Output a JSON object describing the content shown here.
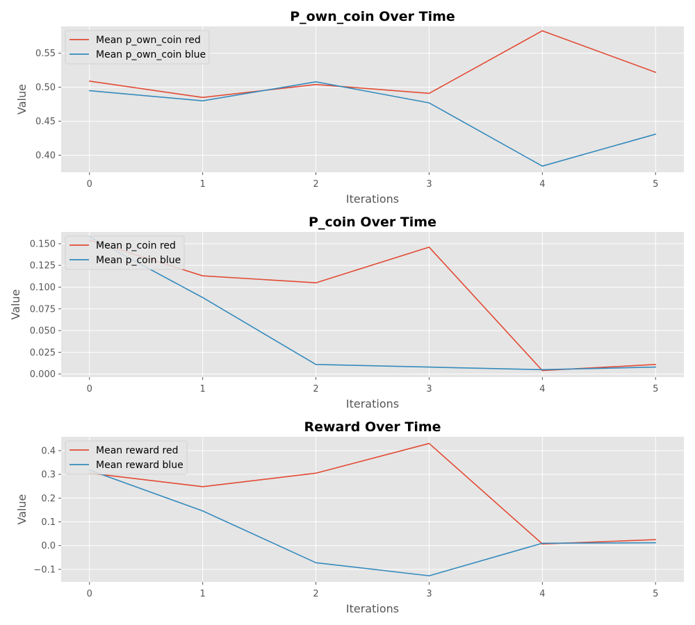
{
  "chart_data": [
    {
      "type": "line",
      "title": "P_own_coin Over Time",
      "xlabel": "Iterations",
      "ylabel": "Value",
      "x": [
        0,
        1,
        2,
        3,
        4,
        5
      ],
      "xlim": [
        -0.25,
        5.25
      ],
      "ylim": [
        0.375,
        0.5895
      ],
      "yticks": [
        0.4,
        0.45,
        0.5,
        0.55
      ],
      "ytick_labels": [
        "0.40",
        "0.45",
        "0.50",
        "0.55"
      ],
      "xticks": [
        0,
        1,
        2,
        3,
        4,
        5
      ],
      "xtick_labels": [
        "0",
        "1",
        "2",
        "3",
        "4",
        "5"
      ],
      "grid": true,
      "legend_position": "top-left",
      "series": [
        {
          "name": "Mean p_own_coin red",
          "color": "#E24A33",
          "values": [
            0.509,
            0.485,
            0.504,
            0.491,
            0.583,
            0.522
          ]
        },
        {
          "name": "Mean p_own_coin blue",
          "color": "#348ABD",
          "values": [
            0.495,
            0.48,
            0.508,
            0.477,
            0.384,
            0.431
          ]
        }
      ]
    },
    {
      "type": "line",
      "title": "P_coin Over Time",
      "xlabel": "Iterations",
      "ylabel": "Value",
      "x": [
        0,
        1,
        2,
        3,
        4,
        5
      ],
      "xlim": [
        -0.25,
        5.25
      ],
      "ylim": [
        -0.0035,
        0.1635
      ],
      "yticks": [
        0.0,
        0.025,
        0.05,
        0.075,
        0.1,
        0.125,
        0.15
      ],
      "ytick_labels": [
        "0.000",
        "0.025",
        "0.050",
        "0.075",
        "0.100",
        "0.125",
        "0.150"
      ],
      "xticks": [
        0,
        1,
        2,
        3,
        4,
        5
      ],
      "xtick_labels": [
        "0",
        "1",
        "2",
        "3",
        "4",
        "5"
      ],
      "grid": true,
      "legend_position": "top-left",
      "series": [
        {
          "name": "Mean p_coin red",
          "color": "#E24A33",
          "values": [
            0.154,
            0.113,
            0.105,
            0.146,
            0.004,
            0.011
          ]
        },
        {
          "name": "Mean p_coin blue",
          "color": "#348ABD",
          "values": [
            0.158,
            0.088,
            0.011,
            0.008,
            0.005,
            0.008
          ]
        }
      ]
    },
    {
      "type": "line",
      "title": "Reward Over Time",
      "xlabel": "Iterations",
      "ylabel": "Value",
      "x": [
        0,
        1,
        2,
        3,
        4,
        5
      ],
      "xlim": [
        -0.25,
        5.25
      ],
      "ylim": [
        -0.153,
        0.458
      ],
      "yticks": [
        -0.1,
        0.0,
        0.1,
        0.2,
        0.3,
        0.4
      ],
      "ytick_labels": [
        "−0.1",
        "0.0",
        "0.1",
        "0.2",
        "0.3",
        "0.4"
      ],
      "xticks": [
        0,
        1,
        2,
        3,
        4,
        5
      ],
      "xtick_labels": [
        "0",
        "1",
        "2",
        "3",
        "4",
        "5"
      ],
      "grid": true,
      "legend_position": "top-left",
      "series": [
        {
          "name": "Mean reward red",
          "color": "#E24A33",
          "values": [
            0.305,
            0.248,
            0.305,
            0.43,
            0.007,
            0.025
          ]
        },
        {
          "name": "Mean reward blue",
          "color": "#348ABD",
          "values": [
            0.318,
            0.146,
            -0.072,
            -0.127,
            0.01,
            0.012
          ]
        }
      ]
    }
  ]
}
